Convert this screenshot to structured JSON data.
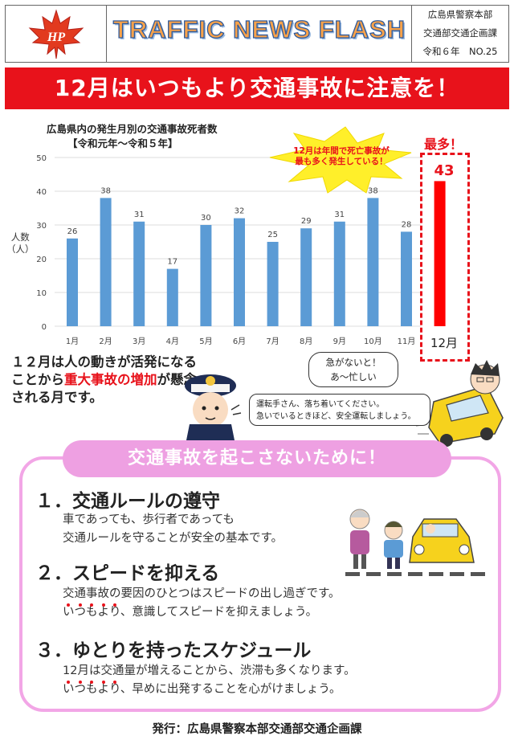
{
  "header": {
    "title": "TRAFFIC NEWS FLASH",
    "org": "広島県警察本部",
    "dept": "交通部交通企画課",
    "issue_year": "令和６年",
    "issue_no": "NO.25",
    "logo_text": "HP"
  },
  "banner": {
    "text": "12月はいつもより交通事故に注意を！"
  },
  "chart_data": {
    "type": "bar",
    "title": "広島県内の発生月別の交通事故死者数",
    "subtitle": "【令和元年～令和５年】",
    "ylabel_line1": "人数",
    "ylabel_line2": "（人）",
    "xlabel": "",
    "ylim": [
      0,
      50
    ],
    "yticks": [
      "0",
      "10",
      "20",
      "30",
      "40",
      "50"
    ],
    "categories": [
      "1月",
      "2月",
      "3月",
      "4月",
      "5月",
      "6月",
      "7月",
      "8月",
      "9月",
      "10月",
      "11月",
      "12月"
    ],
    "values": [
      26,
      38,
      31,
      17,
      30,
      32,
      25,
      29,
      31,
      38,
      28,
      43
    ],
    "bar_color": "#5b9bd5",
    "highlight_color": "#ff0000",
    "highlight_index": 11
  },
  "callouts": {
    "burst_line1": "12月は年間で死亡事故が",
    "burst_line2": "最も多く発生している！",
    "most": "最多！",
    "dec_value": "43",
    "dec_label": "12月"
  },
  "concern": {
    "part1": "１２月は人の動きが活発になることから",
    "red": "重大事故の増加",
    "part2": "が懸念される月です。"
  },
  "speech": {
    "line1": "急がないと！",
    "line2": "あ～忙しい"
  },
  "advice": {
    "line1": "運転手さん、落ち着いてください。",
    "line2": "急いでいるときほど、安全運転しましょう。"
  },
  "prevent": {
    "heading": "交通事故を起こさないために！",
    "rule1_title": "１．交通ルールの遵守",
    "rule1_line1": "車であっても、歩行者であっても",
    "rule1_line2": "交通ルールを守ることが安全の基本です。",
    "rule2_title": "２．スピードを抑える",
    "rule2_line1": "交通事故の要因のひとつはスピードの出し過ぎです。",
    "rule2_line2_emph": "いつもより",
    "rule2_line2_rest": "、意識してスピードを抑えましょう。",
    "rule3_title": "３．ゆとりを持ったスケジュール",
    "rule3_line1": "12月は交通量が増えることから、渋滞も多くなります。",
    "rule3_line2_emph": "いつもより",
    "rule3_line2_rest": "、早めに出発することを心がけましょう。"
  },
  "footer": {
    "text": "発行：広島県警察本部交通部交通企画課"
  }
}
